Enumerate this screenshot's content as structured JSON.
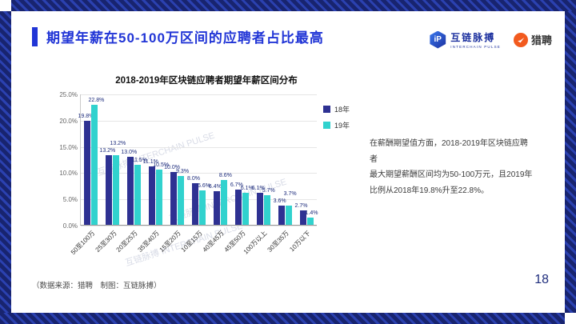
{
  "page": {
    "title": "期望年薪在50-100万区间的应聘者占比最高",
    "page_number": "18",
    "footer_note": "（数据来源：猎聘　制图：互链脉搏）"
  },
  "logos": {
    "interchain_pulse": {
      "monogram": "iP",
      "name": "互链脉搏",
      "subtitle": "INTERCHAIN PULSE"
    },
    "liepin": {
      "name": "猎聘"
    }
  },
  "commentary": {
    "line1": "在薪酬期望值方面，2018-2019年区块链应聘者",
    "line2": "最大期望薪酬区间均为50-100万元，且2019年",
    "line3": "比例从2018年19.8%升至22.8%。"
  },
  "decor": {
    "watermark": "互链脉搏 INTERCHAIN PULSE"
  },
  "chart_data": {
    "type": "bar",
    "title": "2018-2019年区块链应聘者期望年薪区间分布",
    "categories": [
      "50至100万",
      "25至30万",
      "20至25万",
      "35至40万",
      "15至20万",
      "10至15万",
      "40至45万",
      "45至50万",
      "100万以上",
      "30至35万",
      "10万以下"
    ],
    "series": [
      {
        "name": "18年",
        "color": "#2e3192",
        "values": [
          19.8,
          13.2,
          13.0,
          11.1,
          10.0,
          8.0,
          6.4,
          6.7,
          6.1,
          3.6,
          2.7
        ]
      },
      {
        "name": "19年",
        "color": "#31d2ce",
        "values": [
          22.8,
          13.2,
          11.5,
          10.5,
          9.3,
          6.6,
          8.6,
          6.1,
          5.7,
          3.7,
          1.4
        ]
      }
    ],
    "ylim": [
      0,
      25
    ],
    "yticks": [
      "25.0%",
      "20.0%",
      "15.0%",
      "10.0%",
      "5.0%",
      "0.0%"
    ],
    "legend_position": "right",
    "grid": true
  },
  "colors": {
    "accent_blue": "#2135d6",
    "navy": "#1d2c7c",
    "series_2018": "#2e3192",
    "series_2019": "#31d2ce",
    "liepin_orange": "#f25a1e",
    "frame_dark": "#18246f",
    "frame_light": "#2b41b0"
  }
}
